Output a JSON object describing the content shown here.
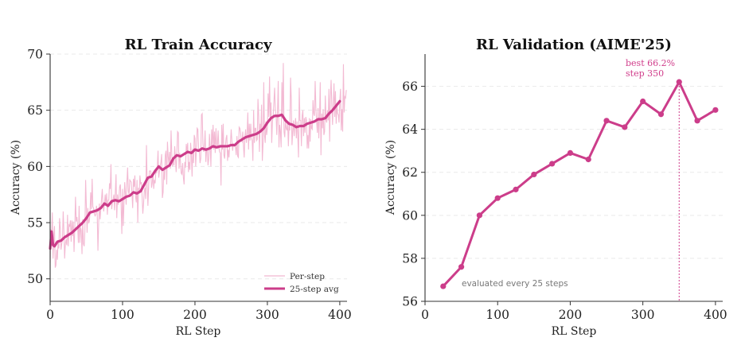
{
  "colors": {
    "accent": "#cc3d8a",
    "light": "#f2b6d1",
    "annotation": "#d03c8a"
  },
  "chart_data": [
    {
      "type": "line",
      "title": "RL Train Accuracy",
      "xlabel": "RL Step",
      "ylabel": "Accuracy (%)",
      "xlim": [
        0,
        410
      ],
      "ylim": [
        48,
        70
      ],
      "xticks": [
        0,
        100,
        200,
        300,
        400
      ],
      "yticks": [
        50,
        55,
        60,
        65,
        70
      ],
      "grid": true,
      "legend_position": "bottom-right",
      "legend": [
        "Per-step",
        "25-step avg"
      ],
      "series": [
        {
          "name": "25-step avg",
          "x": [
            0,
            2,
            4,
            6,
            10,
            15,
            20,
            25,
            30,
            35,
            40,
            45,
            50,
            55,
            60,
            65,
            70,
            75,
            80,
            85,
            90,
            95,
            100,
            105,
            110,
            115,
            120,
            125,
            130,
            135,
            140,
            145,
            150,
            155,
            160,
            165,
            170,
            175,
            180,
            185,
            190,
            195,
            200,
            205,
            210,
            215,
            220,
            225,
            230,
            235,
            240,
            245,
            250,
            255,
            260,
            265,
            270,
            275,
            280,
            285,
            290,
            295,
            300,
            305,
            310,
            315,
            320,
            325,
            330,
            335,
            340,
            345,
            350,
            355,
            360,
            365,
            370,
            375,
            380,
            385,
            390,
            395,
            400
          ],
          "values": [
            52.7,
            54.2,
            53.0,
            52.9,
            53.3,
            53.4,
            53.7,
            53.9,
            54.1,
            54.4,
            54.7,
            55.0,
            55.4,
            55.9,
            56.0,
            56.1,
            56.3,
            56.7,
            56.5,
            56.9,
            57.0,
            56.9,
            57.1,
            57.3,
            57.4,
            57.7,
            57.6,
            57.8,
            58.4,
            59.0,
            59.1,
            59.6,
            60.0,
            59.7,
            59.9,
            60.1,
            60.7,
            61.0,
            60.9,
            61.1,
            61.3,
            61.2,
            61.5,
            61.4,
            61.6,
            61.5,
            61.6,
            61.8,
            61.7,
            61.8,
            61.8,
            61.8,
            61.9,
            61.9,
            62.2,
            62.4,
            62.6,
            62.7,
            62.8,
            62.9,
            63.1,
            63.4,
            63.9,
            64.3,
            64.5,
            64.5,
            64.6,
            64.1,
            63.8,
            63.7,
            63.5,
            63.6,
            63.6,
            63.8,
            63.9,
            64.0,
            64.2,
            64.2,
            64.3,
            64.7,
            65.0,
            65.4,
            65.8
          ]
        },
        {
          "name": "Per-step",
          "values_note_x_step": 1,
          "values": [
            51.4,
            54.4,
            53.8,
            55.9,
            51.8,
            53.9,
            54.7,
            51.0,
            51.2,
            52.6,
            51.7,
            53.4,
            52.7,
            55.4,
            54.5,
            52.6,
            53.1,
            53.5,
            56.0,
            54.3,
            51.8,
            53.1,
            53.5,
            53.0,
            55.7,
            52.9,
            54.8,
            54.7,
            55.2,
            53.3,
            55.2,
            53.8,
            55.1,
            52.4,
            54.4,
            57.3,
            55.1,
            55.5,
            54.7,
            53.2,
            56.5,
            53.2,
            54.6,
            54.3,
            52.2,
            55.3,
            53.1,
            52.9,
            54.3,
            58.8,
            56.5,
            54.1,
            56.3,
            55.0,
            55.1,
            55.8,
            57.7,
            56.2,
            58.9,
            56.4,
            56.3,
            55.8,
            55.6,
            55.7,
            56.5,
            55.9,
            52.5,
            54.9,
            56.7,
            55.3,
            56.2,
            57.1,
            58.0,
            56.5,
            56.0,
            56.7,
            57.5,
            56.5,
            57.6,
            55.7,
            57.0,
            57.0,
            58.5,
            58.0,
            60.2,
            56.2,
            56.8,
            57.1,
            57.5,
            56.1,
            57.7,
            59.3,
            55.4,
            57.5,
            56.6,
            57.2,
            58.2,
            58.4,
            56.6,
            54.0,
            58.0,
            54.7,
            56.8,
            58.6,
            57.5,
            56.6,
            58.6,
            59.9,
            57.8,
            57.5,
            58.8,
            58.7,
            58.6,
            57.6,
            56.3,
            58.9,
            58.2,
            59.2,
            57.3,
            56.8,
            58.8,
            55.0,
            58.1,
            57.6,
            59.2,
            58.4,
            58.6,
            57.3,
            55.8,
            56.7,
            57.8,
            58.1,
            57.1,
            61.9,
            58.5,
            56.5,
            58.2,
            59.6,
            59.6,
            59.6,
            58.1,
            58.5,
            59.5,
            58.0,
            58.8,
            58.5,
            59.6,
            59.4,
            60.0,
            61.4,
            59.0,
            59.6,
            60.0,
            60.4,
            61.1,
            57.2,
            57.7,
            59.8,
            58.8,
            61.0,
            61.4,
            58.4,
            62.2,
            60.9,
            60.2,
            61.3,
            59.8,
            63.2,
            61.1,
            60.0,
            60.8,
            60.1,
            61.8,
            60.8,
            59.5,
            61.2,
            63.1,
            63.0,
            59.8,
            61.2,
            60.4,
            59.4,
            59.3,
            60.3,
            59.0,
            58.4,
            60.4,
            59.9,
            62.0,
            61.3,
            62.1,
            59.5,
            60.4,
            59.7,
            62.1,
            61.1,
            59.1,
            61.6,
            60.3,
            62.8,
            62.5,
            60.0,
            61.5,
            63.4,
            63.3,
            61.5,
            61.4,
            60.3,
            60.7,
            64.6,
            64.7,
            62.0,
            61.3,
            61.6,
            63.2,
            60.4,
            61.4,
            61.6,
            60.1,
            60.7,
            62.9,
            61.7,
            60.0,
            63.3,
            61.9,
            63.7,
            61.5,
            63.1,
            61.2,
            63.4,
            61.9,
            61.8,
            63.2,
            61.7,
            61.3,
            61.2,
            58.3,
            63.7,
            61.5,
            63.8,
            61.0,
            60.7,
            61.8,
            62.5,
            62.8,
            60.5,
            61.5,
            60.8,
            61.9,
            62.0,
            63.3,
            62.3,
            61.4,
            62.0,
            61.9,
            61.8,
            61.7,
            61.0,
            62.7,
            60.9,
            60.8,
            63.5,
            63.4,
            63.0,
            62.3,
            62.2,
            63.1,
            61.8,
            60.8,
            62.7,
            63.3,
            62.1,
            62.9,
            64.8,
            61.5,
            63.8,
            62.3,
            63.8,
            62.5,
            62.3,
            60.5,
            65.0,
            62.1,
            63.4,
            63.4,
            62.3,
            62.4,
            66.0,
            64.5,
            61.3,
            63.8,
            63.2,
            65.5,
            60.5,
            62.0,
            67.5,
            62.8,
            62.1,
            64.0,
            62.8,
            63.4,
            66.5,
            64.4,
            68.0,
            64.2,
            65.7,
            62.1,
            64.0,
            64.5,
            65.7,
            67.0,
            65.0,
            64.6,
            62.8,
            64.8,
            67.6,
            61.7,
            63.7,
            63.1,
            61.7,
            67.5,
            64.4,
            69.2,
            63.1,
            62.6,
            64.1,
            63.4,
            63.2,
            63.9,
            61.8,
            63.8,
            63.2,
            67.9,
            66.0,
            61.9,
            63.1,
            64.1,
            62.7,
            63.7,
            64.3,
            62.5,
            64.0,
            62.7,
            60.8,
            67.0,
            64.1,
            64.1,
            61.8,
            64.5,
            65.0,
            62.7,
            64.3,
            63.0,
            64.4,
            64.1,
            61.6,
            62.8,
            61.6,
            64.3,
            62.2,
            64.2,
            63.4,
            63.3,
            65.9,
            64.7,
            64.5,
            67.6,
            65.2,
            64.0,
            63.0,
            65.2,
            62.5,
            64.4,
            67.5,
            61.0,
            64.7,
            63.4,
            65.1,
            62.8,
            63.1,
            66.3,
            64.1,
            63.9,
            65.0,
            64.1,
            66.9,
            62.2,
            66.0,
            67.7,
            65.5,
            63.7,
            65.5,
            67.4,
            64.4,
            66.7,
            63.8,
            65.5,
            64.7,
            64.6,
            63.9,
            65.8,
            66.9,
            63.2,
            65.1,
            63.1,
            69.1,
            64.8,
            66.2,
            66.1,
            66.8
          ]
        }
      ]
    },
    {
      "type": "line",
      "title": "RL Validation (AIME'25)",
      "xlabel": "RL Step",
      "ylabel": "Accuracy (%)",
      "xlim": [
        0,
        410
      ],
      "ylim": [
        56,
        67.5
      ],
      "xticks": [
        0,
        100,
        200,
        300,
        400
      ],
      "yticks": [
        56,
        58,
        60,
        62,
        64,
        66
      ],
      "grid": true,
      "series": [
        {
          "x": [
            25,
            50,
            75,
            100,
            125,
            150,
            175,
            200,
            225,
            250,
            275,
            300,
            325,
            350,
            375,
            400
          ],
          "values": [
            56.7,
            57.6,
            60.0,
            60.8,
            61.2,
            61.9,
            62.4,
            62.9,
            62.6,
            64.4,
            64.1,
            65.3,
            64.7,
            66.2,
            64.4,
            64.9
          ]
        }
      ],
      "annotations": {
        "best_line1": "best 66.2%",
        "best_line2": "step 350",
        "best_step": 350,
        "note": "evaluated every 25 steps"
      }
    }
  ]
}
